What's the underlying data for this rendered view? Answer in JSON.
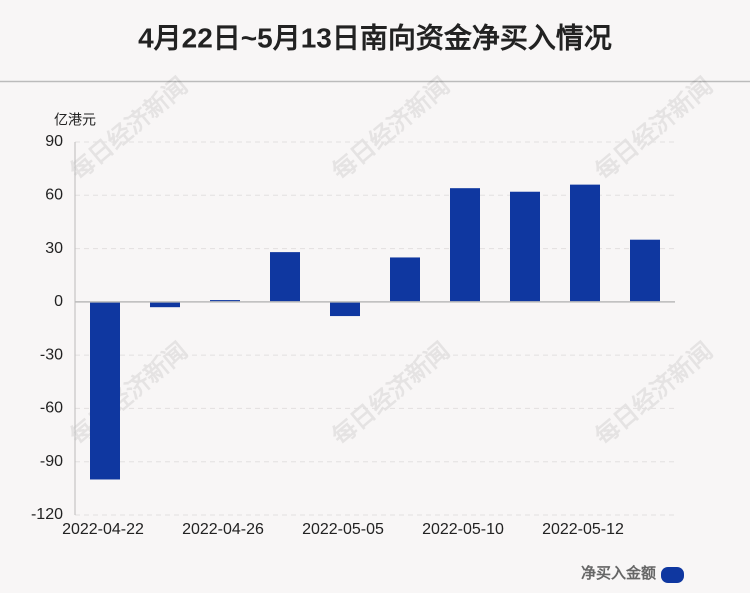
{
  "chart_data": {
    "type": "bar",
    "title": "4月22日~5月13日南向资金净买入情况",
    "y_unit": "亿港元",
    "watermark": "每日经济新闻",
    "categories": [
      "2022-04-22",
      null,
      "2022-04-26",
      null,
      "2022-05-05",
      null,
      "2022-05-10",
      null,
      "2022-05-12",
      null
    ],
    "series": [
      {
        "name": "净买入金额",
        "color": "#0f37a0",
        "values": [
          -100,
          -3,
          1,
          28,
          -8,
          25,
          64,
          62,
          66,
          35
        ]
      }
    ],
    "ylim": [
      -120,
      90
    ],
    "yticks": [
      -120,
      -90,
      -60,
      -30,
      0,
      30,
      60,
      90
    ],
    "grid": true
  }
}
